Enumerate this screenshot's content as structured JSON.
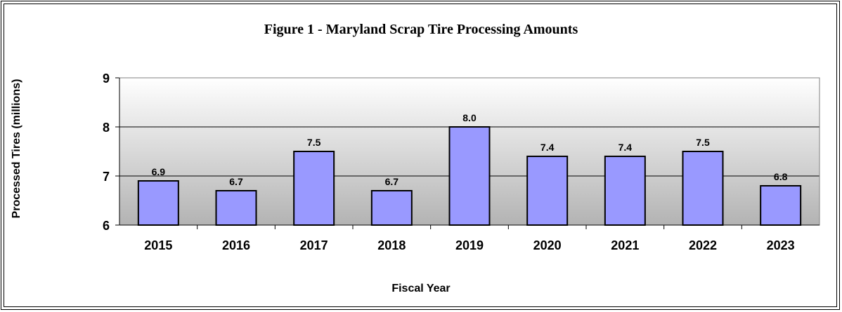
{
  "chart_data": {
    "type": "bar",
    "title": "Figure 1 - Maryland Scrap Tire Processing Amounts",
    "xlabel": "Fiscal Year",
    "ylabel": "Processed Tires (millions)",
    "categories": [
      "2015",
      "2016",
      "2017",
      "2018",
      "2019",
      "2020",
      "2021",
      "2022",
      "2023"
    ],
    "values": [
      6.9,
      6.7,
      7.5,
      6.7,
      8.0,
      7.4,
      7.4,
      7.5,
      6.8
    ],
    "data_labels": [
      "6.9",
      "6.7",
      "7.5",
      "6.7",
      "8.0",
      "7.4",
      "7.4",
      "7.5",
      "6.8"
    ],
    "ylim": [
      6,
      9
    ],
    "yticks": [
      "6",
      "7",
      "8",
      "9"
    ],
    "grid": true,
    "legend": "none",
    "colors": {
      "bar_fill": "#9999ff",
      "bar_stroke": "#000000",
      "plot_bg_top": "#ffffff",
      "plot_bg_bottom": "#b3b3b3",
      "gridline": "#000000"
    }
  }
}
